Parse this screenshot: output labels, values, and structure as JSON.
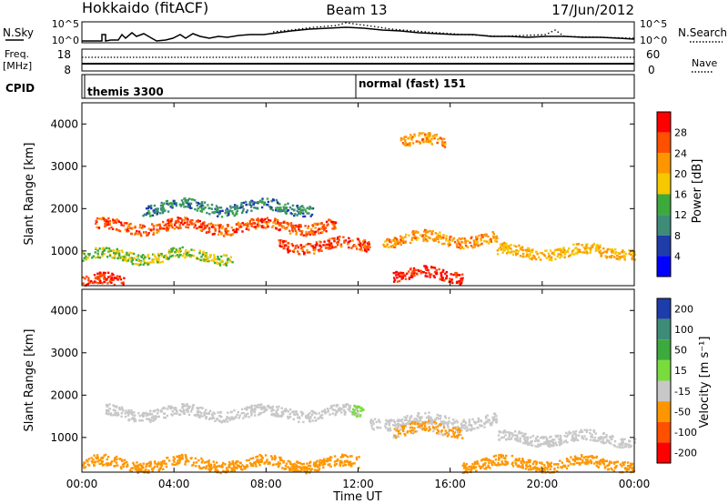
{
  "header": {
    "station": "Hokkaido (fitACF)",
    "beam": "Beam 13",
    "date": "17/Jun/2012"
  },
  "status_panels": {
    "nsky_label": "N.Sky",
    "nsky_ticks": [
      "10^5",
      "10^0"
    ],
    "nsearch_label": "N.Search",
    "nsearch_ticks": [
      "10^5",
      "10^0"
    ],
    "freq_label": "Freq.",
    "freq_unit": "[MHz]",
    "freq_ticks": [
      "18",
      "8"
    ],
    "nave_label": "Nave",
    "nave_ticks": [
      "60",
      "0"
    ],
    "cpid_label": "CPID",
    "cpid_segments": [
      {
        "label": "themis 3300",
        "start_hour": 0
      },
      {
        "label": "normal (fast) 151",
        "start_hour": 12
      }
    ]
  },
  "chart_data": [
    {
      "type": "heatmap",
      "title": "",
      "xlabel": "",
      "ylabel": "Slant Range [km]",
      "xlim": [
        0,
        24
      ],
      "ylim": [
        180,
        4500
      ],
      "yticks": [
        "1000",
        "2000",
        "3000",
        "4000"
      ],
      "colorbar": {
        "label": "Power [dB]",
        "ticks": [
          "28",
          "24",
          "20",
          "16",
          "12",
          "8",
          "4"
        ],
        "colors": [
          "#ff0000",
          "#ff5000",
          "#ff9600",
          "#f5c800",
          "#3caa3c",
          "#3c8c78",
          "#1e3caa",
          "#0000ff"
        ]
      },
      "features": [
        {
          "start_hour": 0.0,
          "end_hour": 1.8,
          "range_km": 300,
          "value": 28
        },
        {
          "start_hour": 0.0,
          "end_hour": 6.5,
          "range_km": 900,
          "value": 16
        },
        {
          "start_hour": 0.5,
          "end_hour": 11.0,
          "range_km": 1600,
          "value": 26
        },
        {
          "start_hour": 8.5,
          "end_hour": 12.5,
          "range_km": 1150,
          "value": 27
        },
        {
          "start_hour": 13.5,
          "end_hour": 16.5,
          "range_km": 450,
          "value": 30
        },
        {
          "start_hour": 13.0,
          "end_hour": 18.0,
          "range_km": 1300,
          "value": 22
        },
        {
          "start_hour": 18.0,
          "end_hour": 24.0,
          "range_km": 1000,
          "value": 20
        },
        {
          "start_hour": 2.5,
          "end_hour": 10.0,
          "range_km": 2050,
          "value": 10
        },
        {
          "start_hour": 13.8,
          "end_hour": 15.8,
          "range_km": 3600,
          "value": 22
        }
      ]
    },
    {
      "type": "heatmap",
      "title": "",
      "xlabel": "Time UT",
      "ylabel": "Slant Range [km]",
      "xlim": [
        0,
        24
      ],
      "ylim": [
        180,
        4500
      ],
      "xticks": [
        "00:00",
        "04:00",
        "08:00",
        "12:00",
        "16:00",
        "20:00",
        "00:00"
      ],
      "yticks": [
        "1000",
        "2000",
        "3000",
        "4000"
      ],
      "colorbar": {
        "label": "Velocity [m s⁻¹]",
        "ticks": [
          "200",
          "100",
          "50",
          "15",
          "-15",
          "-50",
          "-100",
          "-200"
        ],
        "colors": [
          "#1e3caa",
          "#3c8c78",
          "#3caa3c",
          "#78dc3c",
          "#c8c8c8",
          "#ff9600",
          "#ff5000",
          "#ff0000"
        ]
      },
      "features": [
        {
          "start_hour": 1.0,
          "end_hour": 12.0,
          "range_km": 1600,
          "value": 0
        },
        {
          "start_hour": 12.5,
          "end_hour": 18.0,
          "range_km": 1400,
          "value": 0
        },
        {
          "start_hour": 18.0,
          "end_hour": 24.0,
          "range_km": 1000,
          "value": 0
        },
        {
          "start_hour": 0.0,
          "end_hour": 12.0,
          "range_km": 400,
          "value": -40
        },
        {
          "start_hour": 16.5,
          "end_hour": 24.0,
          "range_km": 400,
          "value": -40
        },
        {
          "start_hour": 11.7,
          "end_hour": 12.2,
          "range_km": 1600,
          "value": 40
        },
        {
          "start_hour": 13.5,
          "end_hour": 16.5,
          "range_km": 1200,
          "value": -20
        }
      ]
    }
  ]
}
